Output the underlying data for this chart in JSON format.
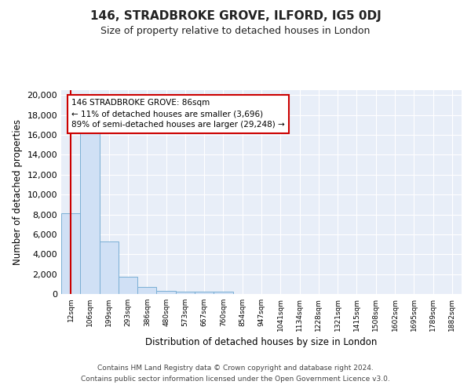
{
  "title": "146, STRADBROKE GROVE, ILFORD, IG5 0DJ",
  "subtitle": "Size of property relative to detached houses in London",
  "xlabel": "Distribution of detached houses by size in London",
  "ylabel": "Number of detached properties",
  "bin_labels": [
    "12sqm",
    "106sqm",
    "199sqm",
    "293sqm",
    "386sqm",
    "480sqm",
    "573sqm",
    "667sqm",
    "760sqm",
    "854sqm",
    "947sqm",
    "1041sqm",
    "1134sqm",
    "1228sqm",
    "1321sqm",
    "1415sqm",
    "1508sqm",
    "1602sqm",
    "1695sqm",
    "1789sqm",
    "1882sqm"
  ],
  "bin_edges": [
    0,
    1,
    2,
    3,
    4,
    5,
    6,
    7,
    8,
    9,
    10,
    11,
    12,
    13,
    14,
    15,
    16,
    17,
    18,
    19,
    20
  ],
  "bar_heights": [
    8100,
    16600,
    5300,
    1750,
    700,
    350,
    250,
    200,
    200,
    0,
    0,
    0,
    0,
    0,
    0,
    0,
    0,
    0,
    0,
    0,
    0
  ],
  "bar_color": "#d0e0f5",
  "bar_edge_color": "#7bafd4",
  "property_bin": 0,
  "marker_line_color": "#cc0000",
  "annotation_text": "146 STRADBROKE GROVE: 86sqm\n← 11% of detached houses are smaller (3,696)\n89% of semi-detached houses are larger (29,248) →",
  "annotation_box_color": "#ffffff",
  "annotation_box_edge": "#cc0000",
  "ylim": [
    0,
    20500
  ],
  "yticks": [
    0,
    2000,
    4000,
    6000,
    8000,
    10000,
    12000,
    14000,
    16000,
    18000,
    20000
  ],
  "footer_line1": "Contains HM Land Registry data © Crown copyright and database right 2024.",
  "footer_line2": "Contains public sector information licensed under the Open Government Licence v3.0.",
  "plot_bg_color": "#e8eef8",
  "fig_bg_color": "#ffffff",
  "grid_color": "#ffffff"
}
